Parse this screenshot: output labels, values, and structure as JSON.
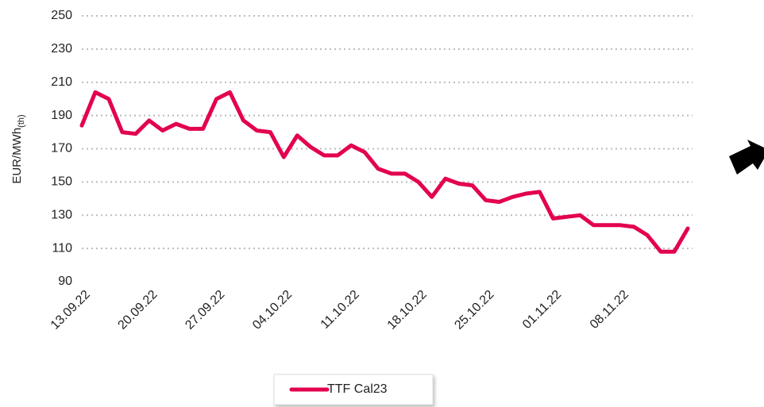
{
  "chart_data": {
    "type": "line",
    "y_label": "EUR/MWh",
    "y_label_sub": "(th)",
    "categories": [
      "13.09.22",
      null,
      null,
      null,
      null,
      "20.09.22",
      null,
      null,
      null,
      null,
      "27.09.22",
      null,
      null,
      null,
      null,
      "04.10.22",
      null,
      null,
      null,
      null,
      "11.10.22",
      null,
      null,
      null,
      null,
      "18.10.22",
      null,
      null,
      null,
      null,
      "25.10.22",
      null,
      null,
      null,
      null,
      "01.11.22",
      null,
      null,
      null,
      null,
      "08.11.22",
      null,
      null,
      null,
      null,
      null
    ],
    "series": [
      {
        "name": "TTF Cal23",
        "color": "#e3004f",
        "values": [
          184,
          204,
          200,
          180,
          179,
          187,
          181,
          185,
          182,
          182,
          200,
          204,
          187,
          181,
          180,
          165,
          178,
          171,
          166,
          166,
          172,
          168,
          158,
          155,
          155,
          150,
          141,
          152,
          149,
          148,
          139,
          138,
          141,
          143,
          144,
          128,
          129,
          130,
          124,
          124,
          124,
          123,
          118,
          108,
          108,
          122
        ]
      }
    ],
    "ylim": [
      90,
      250
    ],
    "yticks": [
      90,
      110,
      130,
      150,
      170,
      190,
      210,
      230,
      250
    ],
    "grid": true,
    "legend": "bottom"
  }
}
